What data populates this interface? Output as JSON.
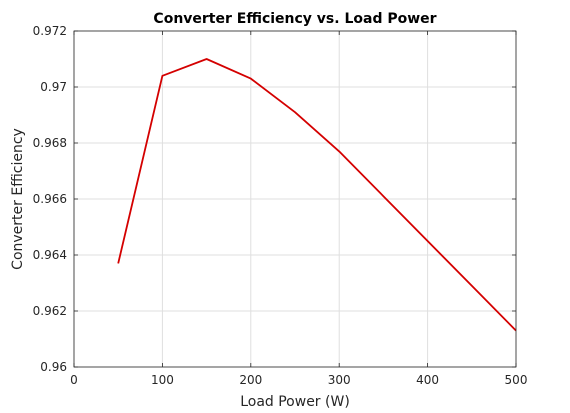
{
  "chart_data": {
    "type": "line",
    "title": "Converter Efficiency vs. Load Power",
    "xlabel": "Load Power (W)",
    "ylabel": "Converter Efficiency",
    "xlim": [
      0,
      500
    ],
    "ylim": [
      0.96,
      0.972
    ],
    "xticks": [
      0,
      100,
      200,
      300,
      400,
      500
    ],
    "xtick_labels": [
      "0",
      "100",
      "200",
      "300",
      "400",
      "500"
    ],
    "yticks": [
      0.96,
      0.962,
      0.964,
      0.966,
      0.968,
      0.97,
      0.972
    ],
    "ytick_labels": [
      "0.96",
      "0.962",
      "0.964",
      "0.966",
      "0.968",
      "0.97",
      "0.972"
    ],
    "grid": true,
    "series": [
      {
        "color": "#d40000",
        "x": [
          50,
          100,
          150,
          200,
          250,
          300,
          350,
          400,
          450,
          500
        ],
        "y": [
          0.9637,
          0.9704,
          0.971,
          0.9703,
          0.9691,
          0.9677,
          0.9661,
          0.9645,
          0.9629,
          0.9613
        ]
      }
    ]
  }
}
